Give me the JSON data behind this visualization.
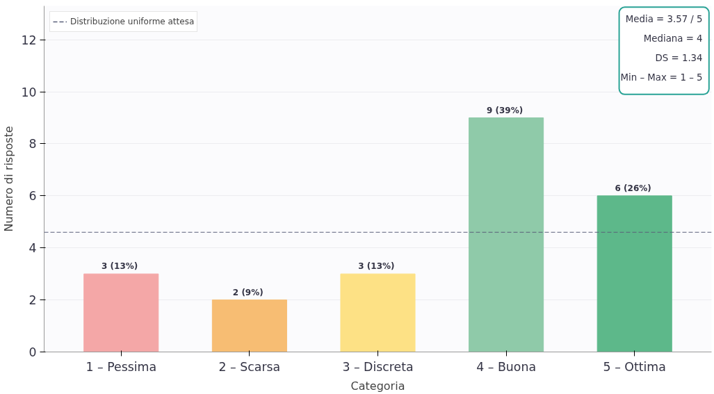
{
  "chart_data": {
    "type": "bar",
    "xlabel": "Categoria",
    "ylabel": "Numero di risposte",
    "categories": [
      "1 – Pessima",
      "2 – Scarsa",
      "3 – Discreta",
      "4 – Buona",
      "5 – Ottima"
    ],
    "values": [
      3,
      2,
      3,
      9,
      6
    ],
    "colors": [
      "#f4a7a7",
      "#f7bd73",
      "#fde185",
      "#8fcaa9",
      "#5db88a"
    ],
    "value_labels": [
      "3  (13%)",
      "2  (9%)",
      "3  (13%)",
      "9  (39%)",
      "6  (26%)"
    ],
    "ylim": [
      0,
      13.3
    ],
    "yticks": [
      0,
      2,
      4,
      6,
      8,
      10,
      12
    ],
    "grid": "y",
    "legend": "top left",
    "ref_lines": [
      {
        "axis": "y",
        "value": 4.6,
        "label": "Distribuzione uniforme attesa",
        "color": "#5a5f7a",
        "line_style": "dashed"
      }
    ],
    "annotations": [
      "Media = 3.57 / 5",
      "Mediana = 4",
      "DS = 1.34",
      "Min – Max = 1 – 5"
    ]
  }
}
